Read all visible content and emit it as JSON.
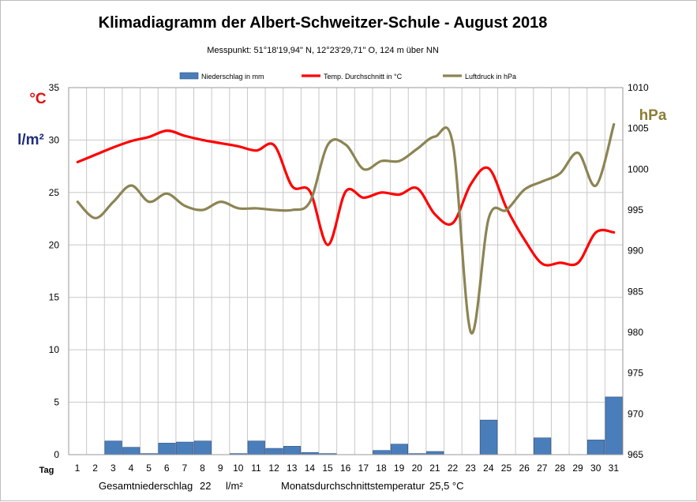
{
  "chart_data": {
    "type": "bar",
    "title": "Klimadiagramm der Albert-Schweitzer-Schule    -   August 2018",
    "subtitle": "Messpunkt:  51°18'19,94\" N,  12°23'29,71\" O,  124 m über NN",
    "xlabel": "Tag",
    "unit_celsius": "°C",
    "unit_precip": "l/m²",
    "unit_pressure": "hPa",
    "categories": [
      "1",
      "2",
      "3",
      "4",
      "5",
      "6",
      "7",
      "8",
      "9",
      "10",
      "11",
      "12",
      "13",
      "14",
      "15",
      "16",
      "17",
      "18",
      "19",
      "20",
      "21",
      "22",
      "23",
      "24",
      "25",
      "26",
      "27",
      "28",
      "29",
      "30",
      "31"
    ],
    "ylim_left": [
      0,
      35
    ],
    "yticks_left": [
      0,
      5,
      10,
      15,
      20,
      25,
      30,
      35
    ],
    "ylim_right": [
      965,
      1010
    ],
    "yticks_right": [
      965,
      970,
      975,
      980,
      985,
      990,
      995,
      1000,
      1005,
      1010
    ],
    "grid": true,
    "legend_position": "top",
    "series": [
      {
        "name": "Niederschlag in mm",
        "type": "bar",
        "axis": "left",
        "color": "#4a7ebb",
        "values": [
          0,
          0,
          1.3,
          0.7,
          0.1,
          1.1,
          1.2,
          1.3,
          0,
          0.1,
          1.3,
          0.6,
          0.8,
          0.2,
          0.1,
          0,
          0,
          0.4,
          1.0,
          0.1,
          0.3,
          0,
          0,
          3.3,
          0,
          0,
          1.6,
          0,
          0,
          1.4,
          5.5
        ]
      },
      {
        "name": "Temp. Durchschnitt in °C",
        "type": "line",
        "axis": "left",
        "color": "#ff0000",
        "values": [
          27.9,
          28.6,
          29.3,
          29.9,
          30.3,
          30.9,
          30.4,
          30.0,
          29.7,
          29.4,
          29.0,
          29.5,
          25.6,
          25.1,
          20.0,
          25.1,
          24.5,
          25.0,
          24.8,
          25.4,
          22.9,
          22.1,
          25.8,
          27.3,
          23.5,
          20.5,
          18.2,
          18.3,
          18.3,
          21.2,
          21.2
        ]
      },
      {
        "name": "Luftdruck in hPa",
        "type": "line",
        "axis": "right",
        "color": "#8c8453",
        "values": [
          996.0,
          994.0,
          996.0,
          998.0,
          996.0,
          997.0,
          995.5,
          995.0,
          996.0,
          995.2,
          995.2,
          995.0,
          995.0,
          996.0,
          1003.0,
          1003.0,
          1000.0,
          1001.0,
          1001.0,
          1002.5,
          1004.0,
          1003.0,
          980.0,
          994.0,
          995.0,
          997.5,
          998.5,
          999.5,
          1002.0,
          998.0,
          1005.5
        ]
      }
    ]
  },
  "footer": {
    "precip_label": "Gesamtniederschlag",
    "precip_value": "22",
    "precip_unit": "l/m²",
    "temp_label": "Monatsdurchschnittstemperatur",
    "temp_value": "25,5 °C"
  }
}
